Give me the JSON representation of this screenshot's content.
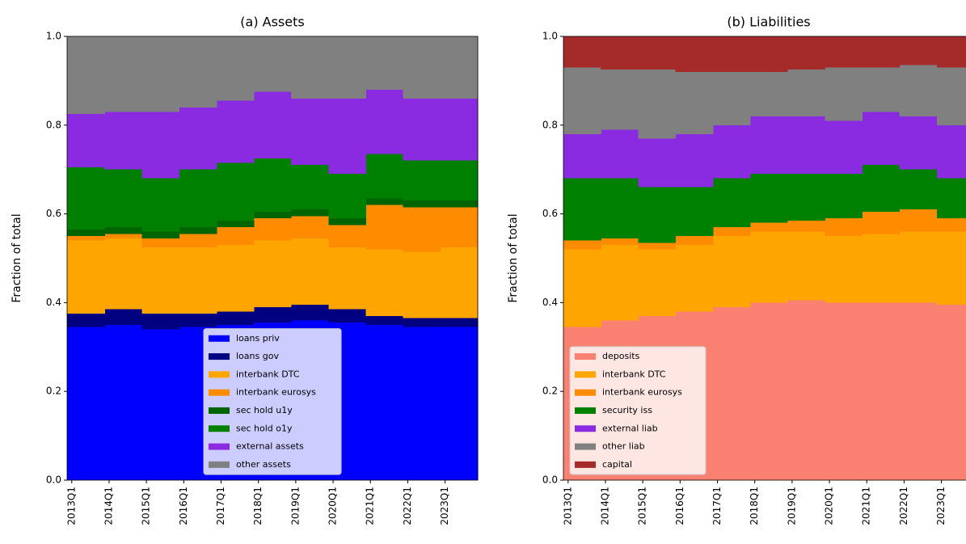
{
  "chart_data": [
    {
      "type": "area",
      "stacked": true,
      "step": true,
      "title": "(a) Assets",
      "ylabel": "Fraction of total",
      "legend": "lower center",
      "categories": [
        "2013Q1",
        null,
        null,
        null,
        "2014Q1",
        null,
        null,
        null,
        "2015Q1",
        null,
        null,
        null,
        "2016Q1",
        null,
        null,
        null,
        "2017Q1",
        null,
        null,
        null,
        "2018Q1",
        null,
        null,
        null,
        "2019Q1",
        null,
        null,
        null,
        "2020Q1",
        null,
        null,
        null,
        "2021Q1",
        null,
        null,
        null,
        "2022Q1",
        null,
        null,
        null,
        "2023Q1",
        null,
        null,
        null
      ],
      "ylim": [
        0,
        1
      ],
      "yticks": [
        {
          "value": 0,
          "label": "0.0"
        },
        0.2,
        0.4,
        0.6,
        0.8,
        {
          "value": 1,
          "label": "1.0"
        }
      ],
      "series": [
        {
          "name": "loans priv",
          "color": "#0000ff",
          "values": [
            0.345,
            0.345,
            0.345,
            0.345,
            0.35,
            0.35,
            0.35,
            0.35,
            0.34,
            0.34,
            0.34,
            0.34,
            0.345,
            0.345,
            0.345,
            0.345,
            0.35,
            0.35,
            0.35,
            0.35,
            0.355,
            0.355,
            0.355,
            0.355,
            0.36,
            0.36,
            0.36,
            0.36,
            0.355,
            0.355,
            0.355,
            0.355,
            0.35,
            0.35,
            0.35,
            0.35,
            0.345,
            0.345,
            0.345,
            0.345,
            0.345,
            0.345,
            0.345,
            0.345
          ]
        },
        {
          "name": "loans gov",
          "color": "#000080",
          "values": [
            0.03,
            0.03,
            0.03,
            0.03,
            0.035,
            0.035,
            0.035,
            0.035,
            0.035,
            0.035,
            0.035,
            0.035,
            0.03,
            0.03,
            0.03,
            0.03,
            0.03,
            0.03,
            0.03,
            0.03,
            0.035,
            0.035,
            0.035,
            0.035,
            0.035,
            0.035,
            0.035,
            0.035,
            0.03,
            0.03,
            0.03,
            0.03,
            0.02,
            0.02,
            0.02,
            0.02,
            0.02,
            0.02,
            0.02,
            0.02,
            0.02,
            0.02,
            0.02,
            0.02
          ]
        },
        {
          "name": "interbank DTC",
          "color": "#ffa500",
          "values": [
            0.165,
            0.165,
            0.165,
            0.165,
            0.16,
            0.16,
            0.16,
            0.16,
            0.15,
            0.15,
            0.15,
            0.15,
            0.15,
            0.15,
            0.15,
            0.15,
            0.15,
            0.15,
            0.15,
            0.15,
            0.15,
            0.15,
            0.15,
            0.15,
            0.15,
            0.15,
            0.15,
            0.15,
            0.14,
            0.14,
            0.14,
            0.14,
            0.15,
            0.15,
            0.15,
            0.15,
            0.15,
            0.15,
            0.15,
            0.15,
            0.16,
            0.16,
            0.16,
            0.16
          ]
        },
        {
          "name": "interbank eurosys",
          "color": "#ff8c00",
          "values": [
            0.01,
            0.01,
            0.01,
            0.01,
            0.01,
            0.01,
            0.01,
            0.01,
            0.02,
            0.02,
            0.02,
            0.02,
            0.03,
            0.03,
            0.03,
            0.03,
            0.04,
            0.04,
            0.04,
            0.04,
            0.05,
            0.05,
            0.05,
            0.05,
            0.05,
            0.05,
            0.05,
            0.05,
            0.05,
            0.05,
            0.05,
            0.05,
            0.1,
            0.1,
            0.1,
            0.1,
            0.1,
            0.1,
            0.1,
            0.1,
            0.09,
            0.09,
            0.09,
            0.09
          ]
        },
        {
          "name": "sec hold u1y",
          "color": "#006400",
          "values": [
            0.015,
            0.015,
            0.015,
            0.015,
            0.015,
            0.015,
            0.015,
            0.015,
            0.015,
            0.015,
            0.015,
            0.015,
            0.015,
            0.015,
            0.015,
            0.015,
            0.015,
            0.015,
            0.015,
            0.015,
            0.015,
            0.015,
            0.015,
            0.015,
            0.015,
            0.015,
            0.015,
            0.015,
            0.015,
            0.015,
            0.015,
            0.015,
            0.015,
            0.015,
            0.015,
            0.015,
            0.015,
            0.015,
            0.015,
            0.015,
            0.015,
            0.015,
            0.015,
            0.015
          ]
        },
        {
          "name": "sec hold o1y",
          "color": "#008000",
          "values": [
            0.14,
            0.14,
            0.14,
            0.14,
            0.13,
            0.13,
            0.13,
            0.13,
            0.12,
            0.12,
            0.12,
            0.12,
            0.13,
            0.13,
            0.13,
            0.13,
            0.13,
            0.13,
            0.13,
            0.13,
            0.12,
            0.12,
            0.12,
            0.12,
            0.1,
            0.1,
            0.1,
            0.1,
            0.1,
            0.1,
            0.1,
            0.1,
            0.1,
            0.1,
            0.1,
            0.1,
            0.09,
            0.09,
            0.09,
            0.09,
            0.09,
            0.09,
            0.09,
            0.09
          ]
        },
        {
          "name": "external assets",
          "color": "#8a2be2",
          "values": [
            0.12,
            0.12,
            0.12,
            0.12,
            0.13,
            0.13,
            0.13,
            0.13,
            0.15,
            0.15,
            0.15,
            0.15,
            0.14,
            0.14,
            0.14,
            0.14,
            0.14,
            0.14,
            0.14,
            0.14,
            0.15,
            0.15,
            0.15,
            0.15,
            0.15,
            0.15,
            0.15,
            0.15,
            0.17,
            0.17,
            0.17,
            0.17,
            0.145,
            0.145,
            0.145,
            0.145,
            0.14,
            0.14,
            0.14,
            0.14,
            0.14,
            0.14,
            0.14,
            0.14
          ]
        },
        {
          "name": "other assets",
          "color": "#808080",
          "values": [
            0.175,
            0.175,
            0.175,
            0.175,
            0.17,
            0.17,
            0.17,
            0.17,
            0.17,
            0.17,
            0.17,
            0.17,
            0.16,
            0.16,
            0.16,
            0.16,
            0.145,
            0.145,
            0.145,
            0.145,
            0.125,
            0.125,
            0.125,
            0.125,
            0.14,
            0.14,
            0.14,
            0.14,
            0.14,
            0.14,
            0.14,
            0.14,
            0.12,
            0.12,
            0.12,
            0.12,
            0.14,
            0.14,
            0.14,
            0.14,
            0.14,
            0.14,
            0.14,
            0.14
          ]
        }
      ]
    },
    {
      "type": "area",
      "stacked": true,
      "step": true,
      "title": "(b) Liabilities",
      "ylabel": "Fraction of total",
      "legend": "lower left",
      "categories": [
        "2013Q1",
        null,
        null,
        null,
        "2014Q1",
        null,
        null,
        null,
        "2015Q1",
        null,
        null,
        null,
        "2016Q1",
        null,
        null,
        null,
        "2017Q1",
        null,
        null,
        null,
        "2018Q1",
        null,
        null,
        null,
        "2019Q1",
        null,
        null,
        null,
        "2020Q1",
        null,
        null,
        null,
        "2021Q1",
        null,
        null,
        null,
        "2022Q1",
        null,
        null,
        null,
        "2023Q1",
        null,
        null,
        null
      ],
      "ylim": [
        0,
        1
      ],
      "yticks": [
        {
          "value": 0,
          "label": "0.0"
        },
        0.2,
        0.4,
        0.6,
        0.8,
        {
          "value": 1,
          "label": "1.0"
        }
      ],
      "series": [
        {
          "name": "deposits",
          "color": "#fa8072",
          "values": [
            0.345,
            0.345,
            0.345,
            0.345,
            0.36,
            0.36,
            0.36,
            0.36,
            0.37,
            0.37,
            0.37,
            0.37,
            0.38,
            0.38,
            0.38,
            0.38,
            0.39,
            0.39,
            0.39,
            0.39,
            0.4,
            0.4,
            0.4,
            0.4,
            0.405,
            0.405,
            0.405,
            0.405,
            0.4,
            0.4,
            0.4,
            0.4,
            0.4,
            0.4,
            0.4,
            0.4,
            0.4,
            0.4,
            0.4,
            0.4,
            0.395,
            0.395,
            0.395,
            0.395
          ]
        },
        {
          "name": "interbank DTC",
          "color": "#ffa500",
          "values": [
            0.175,
            0.175,
            0.175,
            0.175,
            0.17,
            0.17,
            0.17,
            0.17,
            0.15,
            0.15,
            0.15,
            0.15,
            0.15,
            0.15,
            0.15,
            0.15,
            0.16,
            0.16,
            0.16,
            0.16,
            0.16,
            0.16,
            0.16,
            0.16,
            0.155,
            0.155,
            0.155,
            0.155,
            0.15,
            0.15,
            0.15,
            0.15,
            0.155,
            0.155,
            0.155,
            0.155,
            0.16,
            0.16,
            0.16,
            0.16,
            0.165,
            0.165,
            0.165,
            0.165
          ]
        },
        {
          "name": "interbank eurosys",
          "color": "#ff8c00",
          "values": [
            0.02,
            0.02,
            0.02,
            0.02,
            0.015,
            0.015,
            0.015,
            0.015,
            0.015,
            0.015,
            0.015,
            0.015,
            0.02,
            0.02,
            0.02,
            0.02,
            0.02,
            0.02,
            0.02,
            0.02,
            0.02,
            0.02,
            0.02,
            0.02,
            0.025,
            0.025,
            0.025,
            0.025,
            0.04,
            0.04,
            0.04,
            0.04,
            0.05,
            0.05,
            0.05,
            0.05,
            0.05,
            0.05,
            0.05,
            0.05,
            0.03,
            0.03,
            0.03,
            0.03
          ]
        },
        {
          "name": "security iss",
          "color": "#008000",
          "values": [
            0.14,
            0.14,
            0.14,
            0.14,
            0.135,
            0.135,
            0.135,
            0.135,
            0.125,
            0.125,
            0.125,
            0.125,
            0.11,
            0.11,
            0.11,
            0.11,
            0.11,
            0.11,
            0.11,
            0.11,
            0.11,
            0.11,
            0.11,
            0.11,
            0.105,
            0.105,
            0.105,
            0.105,
            0.1,
            0.1,
            0.1,
            0.1,
            0.105,
            0.105,
            0.105,
            0.105,
            0.09,
            0.09,
            0.09,
            0.09,
            0.09,
            0.09,
            0.09,
            0.09
          ]
        },
        {
          "name": "external liab",
          "color": "#8a2be2",
          "values": [
            0.1,
            0.1,
            0.1,
            0.1,
            0.11,
            0.11,
            0.11,
            0.11,
            0.11,
            0.11,
            0.11,
            0.11,
            0.12,
            0.12,
            0.12,
            0.12,
            0.12,
            0.12,
            0.12,
            0.12,
            0.13,
            0.13,
            0.13,
            0.13,
            0.13,
            0.13,
            0.13,
            0.13,
            0.12,
            0.12,
            0.12,
            0.12,
            0.12,
            0.12,
            0.12,
            0.12,
            0.12,
            0.12,
            0.12,
            0.12,
            0.12,
            0.12,
            0.12,
            0.12
          ]
        },
        {
          "name": "other liab",
          "color": "#808080",
          "values": [
            0.15,
            0.15,
            0.15,
            0.15,
            0.135,
            0.135,
            0.135,
            0.135,
            0.155,
            0.155,
            0.155,
            0.155,
            0.14,
            0.14,
            0.14,
            0.14,
            0.12,
            0.12,
            0.12,
            0.12,
            0.1,
            0.1,
            0.1,
            0.1,
            0.105,
            0.105,
            0.105,
            0.105,
            0.12,
            0.12,
            0.12,
            0.12,
            0.1,
            0.1,
            0.1,
            0.1,
            0.115,
            0.115,
            0.115,
            0.115,
            0.13,
            0.13,
            0.13,
            0.13
          ]
        },
        {
          "name": "capital",
          "color": "#a52a2a",
          "values": [
            0.07,
            0.07,
            0.07,
            0.07,
            0.075,
            0.075,
            0.075,
            0.075,
            0.075,
            0.075,
            0.075,
            0.075,
            0.08,
            0.08,
            0.08,
            0.08,
            0.08,
            0.08,
            0.08,
            0.08,
            0.08,
            0.08,
            0.08,
            0.08,
            0.075,
            0.075,
            0.075,
            0.075,
            0.07,
            0.07,
            0.07,
            0.07,
            0.07,
            0.07,
            0.07,
            0.07,
            0.065,
            0.065,
            0.065,
            0.065,
            0.07,
            0.07,
            0.07,
            0.07
          ]
        }
      ]
    }
  ]
}
